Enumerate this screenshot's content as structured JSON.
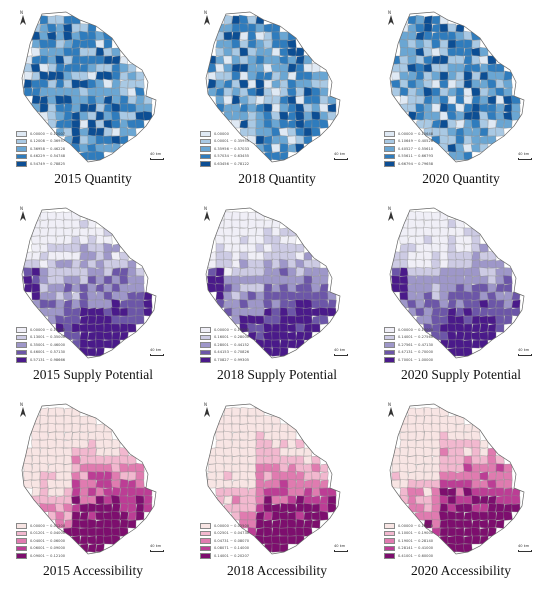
{
  "scale_label": "40 km",
  "north_label": "N",
  "panels": [
    {
      "caption": "2015 Quantity",
      "scheme": "blue",
      "legend": [
        "0.00000 ~ 0.12007",
        "0.12008 ~ 0.36957",
        "0.36958 ~ 0.46228",
        "0.46229 ~ 0.54748",
        "0.54749 ~ 0.78825"
      ]
    },
    {
      "caption": "2018 Quantity",
      "scheme": "blue",
      "legend": [
        "0.00000",
        "0.00001 ~ 0.35955",
        "0.35956 ~ 0.57033",
        "0.57034 ~ 0.63455",
        "0.63456 ~ 0.78122"
      ]
    },
    {
      "caption": "2020 Quantity",
      "scheme": "blue",
      "legend": [
        "0.00000 ~ 0.10648",
        "0.10649 ~ 0.40526",
        "0.40527 ~ 0.55610",
        "0.55611 ~ 0.66793",
        "0.66794 ~ 0.79658"
      ]
    },
    {
      "caption": "2015 Supply Potential",
      "scheme": "purple",
      "legend": [
        "0.00000 ~ 0.13000",
        "0.13001 ~ 0.35000",
        "0.35001 ~ 0.46000",
        "0.46001 ~ 0.57130",
        "0.57131 ~ 0.98666"
      ]
    },
    {
      "caption": "2018 Supply Potential",
      "scheme": "purple",
      "legend": [
        "0.00000 ~ 0.16000",
        "0.16001 ~ 0.28000",
        "0.28001 ~ 0.44152",
        "0.44153 ~ 0.70826",
        "0.70827 ~ 0.99305"
      ]
    },
    {
      "caption": "2020 Supply Potential",
      "scheme": "purple",
      "legend": [
        "0.00000 ~ 0.14000",
        "0.14001 ~ 0.27560",
        "0.27561 ~ 0.47130",
        "0.47131 ~ 0.70000",
        "0.70001 ~ 1.00000"
      ]
    },
    {
      "caption": "2015 Accessibility",
      "scheme": "pink",
      "legend": [
        "0.00000 ~ 0.01200",
        "0.01201 ~ 0.04000",
        "0.04001 ~ 0.06000",
        "0.06001 ~ 0.09000",
        "0.09001 ~ 0.12100"
      ]
    },
    {
      "caption": "2018 Accessibility",
      "scheme": "pink",
      "legend": [
        "0.00000 ~ 0.02500",
        "0.02501 ~ 0.04730",
        "0.04731 ~ 0.08070",
        "0.08071 ~ 0.14000",
        "0.14001 ~ 0.20207"
      ]
    },
    {
      "caption": "2020 Accessibility",
      "scheme": "pink",
      "legend": [
        "0.00000 ~ 0.10000",
        "0.10001 ~ 0.19000",
        "0.19001 ~ 0.28140",
        "0.28141 ~ 0.41000",
        "0.41001 ~ 0.60000"
      ]
    }
  ],
  "colors": {
    "blue": [
      "#dfe9f4",
      "#a9c9e4",
      "#6aa6d3",
      "#2f7cbd",
      "#0c4e94"
    ],
    "purple": [
      "#f0eff7",
      "#cdcbe4",
      "#9e97c9",
      "#6c56a8",
      "#4a1a8a"
    ],
    "pink": [
      "#f8e5e4",
      "#f2b8cf",
      "#e07bb0",
      "#bc3d95",
      "#7d0e6e"
    ],
    "outline": "#8c8c8c"
  }
}
